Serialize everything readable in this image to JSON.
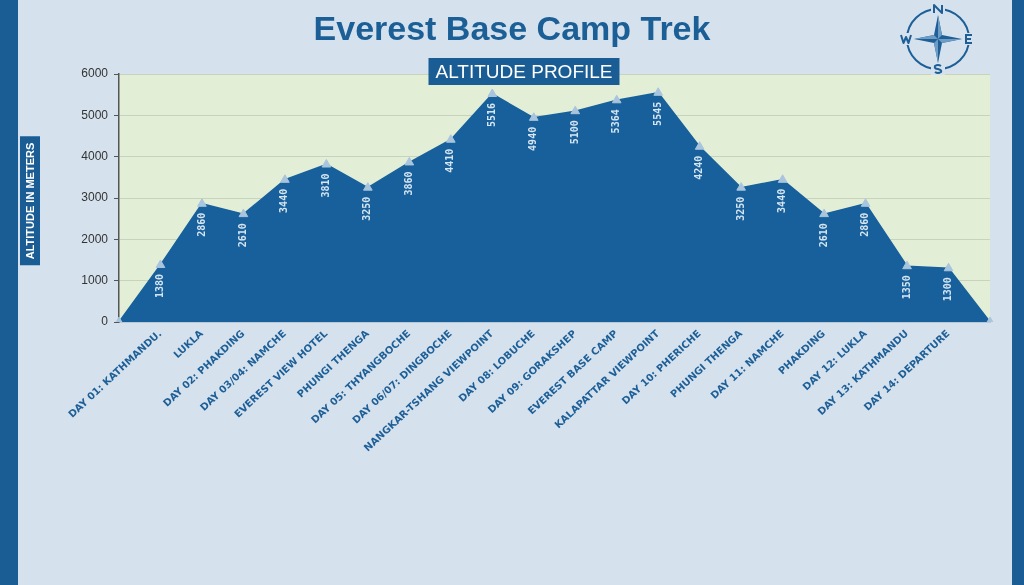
{
  "chart_data": {
    "type": "area",
    "title": "Everest Base Camp Trek",
    "subtitle": "ALTITUDE PROFILE",
    "ylabel": "ALTITUDE IN METERS",
    "categories": [
      null,
      "DAY 01: KATHMANDU.",
      "LUKLA",
      "DAY 02: PHAKDING",
      "DAY 03/04: NAMCHE",
      "EVEREST VIEW HOTEL",
      "PHUNGI THENGA",
      "DAY 05: THYANGBOCHE",
      "DAY 06/07: DINGBOCHE",
      "NANGKAR-TSHANG VIEWPOINT",
      "DAY 08: LOBUCHE",
      "DAY 09: GORAKSHEP",
      "EVEREST BASE CAMP",
      "KALAPATTAR VIEWPOINT",
      "DAY 10: PHERICHE",
      "PHUNGI THENGA",
      "DAY 11: NAMCHE",
      "PHAKDING",
      "DAY 12: LUKLA",
      "DAY 13: KATHMANDU",
      "DAY 14: DEPARTURE",
      null
    ],
    "values": [
      0,
      1380,
      2860,
      2610,
      3440,
      3810,
      3250,
      3860,
      4410,
      5516,
      4940,
      5100,
      5364,
      5545,
      4240,
      3250,
      3440,
      2610,
      2860,
      1350,
      1300,
      0
    ],
    "value_labels": [
      null,
      "1380",
      "2860",
      "2610",
      "3440",
      "3810",
      "3250",
      "3860",
      "4410",
      "5516",
      "4940",
      "5100",
      "5364",
      "5545",
      "4240",
      "3250",
      "3440",
      "2610",
      "2860",
      "1350",
      "1300",
      null
    ],
    "color": "#17609c",
    "ylim": [
      0,
      6000
    ],
    "yticks": [
      0,
      1000,
      2000,
      3000,
      4000,
      5000,
      6000
    ],
    "grid": "y",
    "marker": "triangle"
  }
}
